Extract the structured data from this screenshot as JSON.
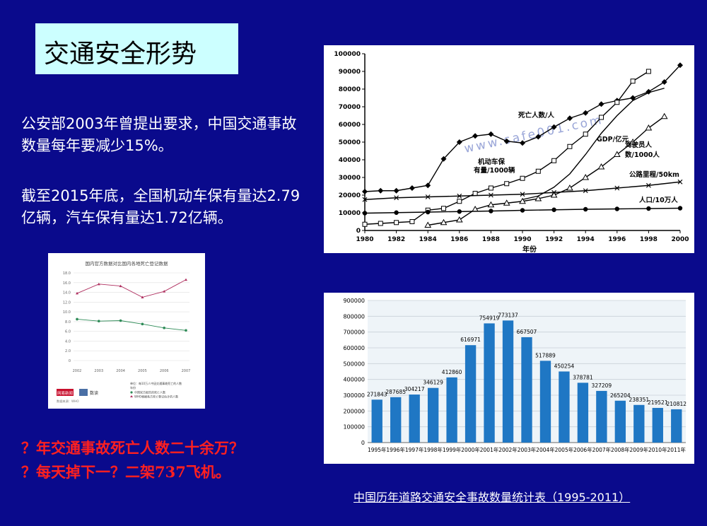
{
  "slide": {
    "title": "交通安全形势",
    "para1": "公安部2003年曾提出要求，中国交通事故数量每年要减少15%。",
    "para2": "截至2015年底，全国机动车保有量达2.79亿辆，汽车保有量达1.72亿辆。",
    "red1": "？年交通事故死亡人数二十余万？",
    "red2": "？每天掉下一？二架737飞机。",
    "caption": "中国历年道路交通安全事故数量统计表（1995-2011）",
    "colors": {
      "background": "#0a0a8c",
      "title_box": "#ccffff",
      "red_text": "#ff2020",
      "bar": "#1f77c4"
    }
  },
  "chart_data": [
    {
      "type": "line",
      "xlabel": "年份",
      "xlim": [
        1980,
        2000
      ],
      "ylim": [
        0,
        100000
      ],
      "xticks": [
        1980,
        1982,
        1984,
        1986,
        1988,
        1990,
        1992,
        1994,
        1996,
        1998,
        2000
      ],
      "yticks": [
        0,
        10000,
        20000,
        30000,
        40000,
        50000,
        60000,
        70000,
        80000,
        90000,
        100000
      ],
      "watermark": "www.safe001.com",
      "series": [
        {
          "name": "死亡人数/人",
          "marker": "diamond",
          "x": [
            1980,
            1981,
            1982,
            1983,
            1984,
            1985,
            1986,
            1987,
            1988,
            1989,
            1990,
            1991,
            1992,
            1993,
            1994,
            1995,
            1996,
            1997,
            1998,
            1999,
            2000
          ],
          "y": [
            22000,
            22500,
            22500,
            24000,
            25500,
            40500,
            50000,
            53500,
            54500,
            50500,
            49500,
            53000,
            58500,
            63500,
            66500,
            71500,
            73500,
            75000,
            78500,
            84000,
            93500
          ]
        },
        {
          "name": "机动车保有量/1000辆",
          "marker": "square",
          "x": [
            1980,
            1981,
            1982,
            1983,
            1984,
            1985,
            1986,
            1987,
            1988,
            1989,
            1990,
            1991,
            1992,
            1993,
            1994,
            1995,
            1996,
            1997,
            1998
          ],
          "y": [
            3500,
            4000,
            4500,
            5000,
            11500,
            12500,
            16500,
            21000,
            24000,
            26500,
            29500,
            33500,
            39500,
            47500,
            54500,
            64000,
            72500,
            84500,
            90000
          ]
        },
        {
          "name": "GDP/亿元",
          "marker": "none",
          "x": [
            1990,
            1991,
            1992,
            1993,
            1994,
            1995,
            1996,
            1997,
            1998,
            1999
          ],
          "y": [
            17500,
            19500,
            24500,
            32000,
            43000,
            55000,
            65000,
            73500,
            78000,
            80500
          ]
        },
        {
          "name": "驾驶员人数/1000人",
          "marker": "triangle",
          "x": [
            1984,
            1985,
            1986,
            1987,
            1988,
            1989,
            1990,
            1991,
            1992,
            1993,
            1994,
            1995,
            1996,
            1997,
            1998,
            1999
          ],
          "y": [
            3000,
            4500,
            6000,
            12000,
            14500,
            15500,
            16500,
            18000,
            20000,
            24000,
            30000,
            36000,
            43000,
            50000,
            58000,
            64500
          ]
        },
        {
          "name": "公路里程/50km",
          "marker": "x",
          "x": [
            1980,
            1982,
            1984,
            1986,
            1988,
            1990,
            1992,
            1994,
            1996,
            1998,
            2000
          ],
          "y": [
            17500,
            18500,
            19000,
            19500,
            20000,
            20500,
            21500,
            22500,
            24000,
            25500,
            27500
          ]
        },
        {
          "name": "人口/10万人",
          "marker": "circle",
          "x": [
            1980,
            1982,
            1984,
            1986,
            1988,
            1990,
            1992,
            1994,
            1996,
            1998,
            2000
          ],
          "y": [
            9800,
            10100,
            10400,
            10700,
            11000,
            11400,
            11700,
            12000,
            12200,
            12400,
            12600
          ]
        }
      ]
    },
    {
      "type": "bar",
      "ylim": [
        0,
        900000
      ],
      "yticks": [
        0,
        100000,
        200000,
        300000,
        400000,
        500000,
        600000,
        700000,
        800000,
        900000
      ],
      "categories": [
        "1995年",
        "1996年",
        "1997年",
        "1998年",
        "1999年",
        "2000年",
        "2001年",
        "2002年",
        "2003年",
        "2004年",
        "2005年",
        "2006年",
        "2007年",
        "2008年",
        "2009年",
        "2010年",
        "2011年"
      ],
      "values": [
        271843,
        287685,
        304217,
        346129,
        412860,
        616971,
        754919,
        773137,
        667507,
        517889,
        450254,
        378781,
        327209,
        265204,
        238351,
        219521,
        210812
      ]
    },
    {
      "type": "line",
      "title": "国内官方数据对比国内各地死亡登记数据",
      "categories": [
        "2002",
        "2003",
        "2004",
        "2005",
        "2006",
        "2007"
      ],
      "ylim": [
        0,
        18
      ],
      "yticks": [
        0,
        2,
        4,
        6,
        8,
        10,
        12,
        14,
        16,
        18
      ],
      "ytick_labels": [
        "0",
        "2.0",
        "4.0",
        "6.0",
        "8.0",
        "10.0",
        "12.0",
        "14.0",
        "16.0",
        "18.0"
      ],
      "series": [
        {
          "name": "中国官方报告的死亡人数",
          "color": "#2e8b57",
          "values": [
            8.5,
            8.1,
            8.2,
            7.5,
            6.7,
            6.2
          ]
        },
        {
          "name": "WHO根据各方死亡登记估计的人数",
          "color": "#b03060",
          "values": [
            13.8,
            15.7,
            15.3,
            13.0,
            14.2,
            16.6
          ]
        }
      ],
      "legend_note": "单位：每10万人中因交通事故死亡的人数",
      "legend_unit": "年份",
      "brand": "网易新闻",
      "brand2": "数读",
      "source": "数据来源：WHO"
    }
  ]
}
